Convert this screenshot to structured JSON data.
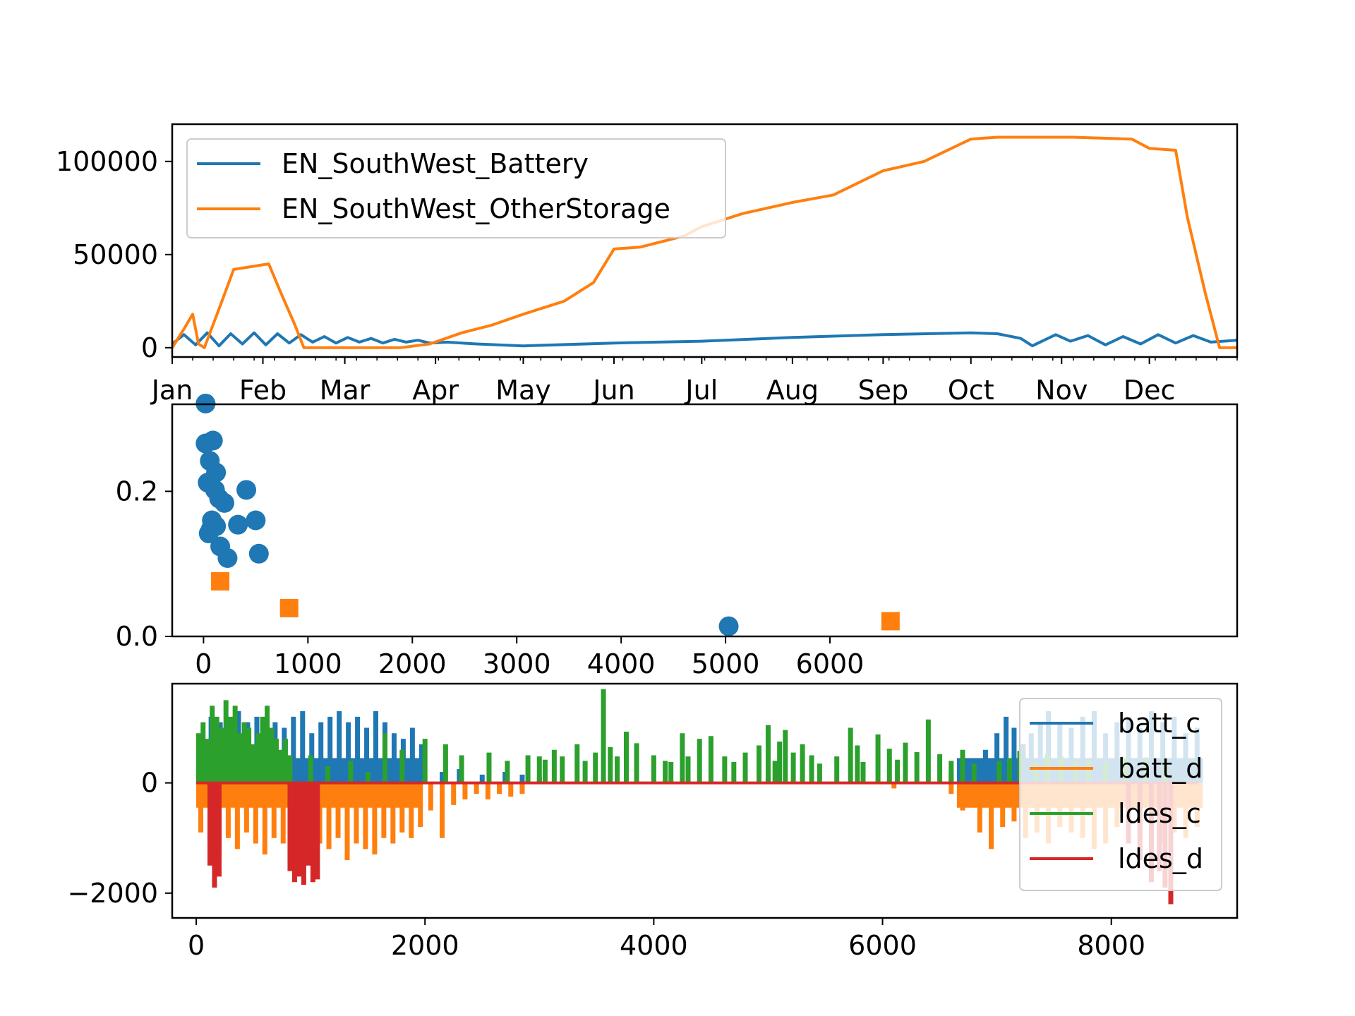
{
  "colors": {
    "c0": "#1f77b4",
    "c1": "#ff7f0e",
    "c2": "#2ca02c",
    "c3": "#d62728",
    "axes": "#000000",
    "background": "#ffffff"
  },
  "chart_data": [
    {
      "id": "top",
      "type": "line",
      "title": "",
      "xlabel": "",
      "ylabel": "",
      "x_scale": "date",
      "x_range": [
        "2023-01-01",
        "2023-12-31"
      ],
      "ylim": [
        -5000,
        120000
      ],
      "grid": false,
      "legend_placement": "upper left",
      "x_tick_labels": [
        "Jan",
        "Feb",
        "Mar",
        "Apr",
        "May",
        "Jun",
        "Jul",
        "Aug",
        "Sep",
        "Oct",
        "Nov",
        "Dec"
      ],
      "x_ticks": [
        "2023-01-01",
        "2023-02-01",
        "2023-03-01",
        "2023-04-01",
        "2023-05-01",
        "2023-06-01",
        "2023-07-01",
        "2023-08-01",
        "2023-09-01",
        "2023-10-01",
        "2023-11-01",
        "2023-12-01"
      ],
      "y_ticks": [
        0,
        50000,
        100000
      ],
      "y_tick_labels": [
        "0",
        "50000",
        "100000"
      ],
      "series": [
        {
          "name": "EN_SouthWest_Battery",
          "color": "#1f77b4",
          "x": [
            "2023-01-01",
            "2023-01-05",
            "2023-01-09",
            "2023-01-13",
            "2023-01-17",
            "2023-01-21",
            "2023-01-25",
            "2023-01-29",
            "2023-02-02",
            "2023-02-06",
            "2023-02-10",
            "2023-02-14",
            "2023-02-18",
            "2023-02-22",
            "2023-02-26",
            "2023-03-02",
            "2023-03-06",
            "2023-03-10",
            "2023-03-14",
            "2023-03-18",
            "2023-03-22",
            "2023-03-26",
            "2023-03-30",
            "2023-04-05",
            "2023-04-15",
            "2023-05-01",
            "2023-06-01",
            "2023-07-01",
            "2023-08-01",
            "2023-09-01",
            "2023-10-01",
            "2023-10-10",
            "2023-10-18",
            "2023-10-22",
            "2023-10-26",
            "2023-10-30",
            "2023-11-04",
            "2023-11-10",
            "2023-11-16",
            "2023-11-22",
            "2023-11-28",
            "2023-12-04",
            "2023-12-10",
            "2023-12-16",
            "2023-12-22",
            "2023-12-31"
          ],
          "y": [
            2000,
            7000,
            1500,
            8000,
            1000,
            7500,
            2000,
            8000,
            1500,
            7500,
            2500,
            7000,
            3000,
            6000,
            2500,
            5500,
            3000,
            5000,
            2500,
            4500,
            3000,
            4000,
            2500,
            3000,
            2000,
            1000,
            2500,
            3500,
            5500,
            7000,
            8000,
            7500,
            5000,
            1000,
            4000,
            7000,
            3500,
            6500,
            1500,
            6000,
            2000,
            7000,
            2500,
            6500,
            3000,
            4000
          ]
        },
        {
          "name": "EN_SouthWest_OtherStorage",
          "color": "#ff7f0e",
          "x": [
            "2023-01-01",
            "2023-01-05",
            "2023-01-08",
            "2023-01-10",
            "2023-01-12",
            "2023-01-18",
            "2023-01-22",
            "2023-02-03",
            "2023-02-07",
            "2023-02-12",
            "2023-02-15",
            "2023-03-01",
            "2023-03-20",
            "2023-03-30",
            "2023-04-10",
            "2023-04-20",
            "2023-05-01",
            "2023-05-15",
            "2023-05-25",
            "2023-06-01",
            "2023-06-10",
            "2023-06-25",
            "2023-07-01",
            "2023-07-15",
            "2023-08-01",
            "2023-08-15",
            "2023-09-01",
            "2023-09-15",
            "2023-10-01",
            "2023-10-10",
            "2023-10-20",
            "2023-11-05",
            "2023-11-25",
            "2023-12-01",
            "2023-12-10",
            "2023-12-14",
            "2023-12-20",
            "2023-12-25",
            "2023-12-31"
          ],
          "y": [
            0,
            10000,
            18000,
            2000,
            0,
            25000,
            42000,
            45000,
            30000,
            12000,
            0,
            0,
            0,
            2000,
            8000,
            12000,
            18000,
            25000,
            35000,
            53000,
            54000,
            60000,
            65000,
            72000,
            78000,
            82000,
            95000,
            100000,
            112000,
            113000,
            113000,
            113000,
            112000,
            107000,
            106000,
            70000,
            30000,
            0,
            0
          ]
        }
      ]
    },
    {
      "id": "middle",
      "type": "scatter",
      "title": "",
      "xlabel": "",
      "ylabel": "",
      "xlim": [
        -300,
        9900
      ],
      "ylim": [
        0,
        0.32
      ],
      "grid": false,
      "x_ticks": [
        0,
        1000,
        2000,
        3000,
        4000,
        5000,
        6000
      ],
      "x_tick_labels": [
        "0",
        "1000",
        "2000",
        "3000",
        "4000",
        "5000",
        "6000"
      ],
      "y_ticks": [
        0.0,
        0.2
      ],
      "y_tick_labels": [
        "0.0",
        "0.2"
      ],
      "series": [
        {
          "marker": "circle",
          "color": "#1f77b4",
          "x": [
            20,
            90,
            20,
            60,
            120,
            40,
            110,
            150,
            200,
            50,
            80,
            120,
            70,
            160,
            230,
            410,
            330,
            500,
            530,
            5030
          ],
          "y": [
            0.321,
            0.27,
            0.266,
            0.242,
            0.226,
            0.212,
            0.202,
            0.19,
            0.184,
            0.142,
            0.16,
            0.152,
            0.148,
            0.124,
            0.108,
            0.202,
            0.154,
            0.16,
            0.114,
            0.014
          ]
        },
        {
          "marker": "square",
          "color": "#ff7f0e",
          "x": [
            160,
            820,
            6580
          ],
          "y": [
            0.076,
            0.039,
            0.021
          ]
        }
      ]
    },
    {
      "id": "bottom",
      "type": "line",
      "title": "",
      "xlabel": "",
      "ylabel": "",
      "xlim": [
        -210,
        9100
      ],
      "ylim": [
        -2450,
        1800
      ],
      "grid": false,
      "legend_placement": "upper right",
      "x_ticks": [
        0,
        2000,
        4000,
        6000,
        8000
      ],
      "x_tick_labels": [
        "0",
        "2000",
        "4000",
        "6000",
        "8000"
      ],
      "y_ticks": [
        -2000,
        0
      ],
      "y_tick_labels": [
        "−2000",
        "0"
      ],
      "series": [
        {
          "name": "batt_c",
          "color": "#1f77b4",
          "style": "spikes",
          "x": [
            50,
            130,
            210,
            290,
            370,
            450,
            530,
            610,
            690,
            770,
            850,
            930,
            1010,
            1090,
            1170,
            1250,
            1330,
            1410,
            1490,
            1570,
            1650,
            1730,
            1810,
            1890,
            1970,
            2150,
            2300,
            2500,
            2700,
            2850,
            3000,
            5000,
            6600,
            6750,
            6900,
            7000,
            7080,
            7150,
            7230,
            7300,
            7380,
            7450,
            7550,
            7650,
            7750,
            7850,
            7950,
            8050,
            8150,
            8250,
            8350,
            8450,
            8550,
            8650,
            8750
          ],
          "y": [
            800,
            1200,
            1100,
            1000,
            1300,
            1100,
            1200,
            900,
            1100,
            1000,
            1200,
            1300,
            900,
            1100,
            1200,
            1300,
            1100,
            1200,
            1000,
            1300,
            1100,
            900,
            800,
            1000,
            700,
            200,
            250,
            150,
            200,
            150,
            100,
            100,
            200,
            300,
            600,
            900,
            1200,
            1000,
            700,
            900,
            1100,
            1300,
            1100,
            1000,
            1200,
            1300,
            900,
            1100,
            1200,
            1000,
            1300,
            1100,
            1200,
            900,
            1000
          ]
        },
        {
          "name": "batt_d",
          "color": "#ff7f0e",
          "style": "spikes",
          "x": [
            40,
            120,
            200,
            280,
            360,
            440,
            520,
            600,
            680,
            760,
            840,
            920,
            1000,
            1080,
            1160,
            1240,
            1320,
            1400,
            1480,
            1560,
            1640,
            1720,
            1800,
            1880,
            1960,
            2050,
            2150,
            2250,
            2350,
            2450,
            2550,
            2650,
            2750,
            2850,
            6100,
            6600,
            6700,
            6850,
            6950,
            7050,
            7150,
            7250,
            7350,
            7450,
            7550,
            7650,
            7750,
            7850,
            7950,
            8050,
            8150,
            8250,
            8350,
            8450,
            8550,
            8650,
            8750
          ],
          "y": [
            -900,
            -1100,
            -1300,
            -1000,
            -1200,
            -900,
            -1100,
            -1300,
            -1000,
            -1100,
            -1200,
            -1000,
            -1300,
            -1100,
            -1200,
            -1000,
            -1400,
            -1100,
            -1200,
            -1300,
            -1000,
            -1100,
            -900,
            -1000,
            -800,
            -500,
            -1000,
            -400,
            -300,
            -200,
            -300,
            -200,
            -250,
            -200,
            -100,
            -200,
            -500,
            -900,
            -1200,
            -800,
            -700,
            -1000,
            -900,
            -1100,
            -800,
            -900,
            -1000,
            -1200,
            -1100,
            -800,
            -700,
            -1000,
            -1300,
            -1100,
            -900,
            -1000,
            -800
          ]
        },
        {
          "name": "ldes_c",
          "color": "#2ca02c",
          "style": "spikes",
          "x": [
            20,
            60,
            100,
            140,
            180,
            220,
            260,
            300,
            340,
            380,
            420,
            460,
            500,
            540,
            580,
            620,
            660,
            700,
            740,
            780,
            820,
            1000,
            1150,
            1350,
            1500,
            1650,
            1800,
            2000,
            2180,
            2320,
            2560,
            2720,
            2900,
            3000,
            3050,
            3130,
            3200,
            3330,
            3400,
            3490,
            3560,
            3620,
            3680,
            3760,
            3850,
            4000,
            4100,
            4150,
            4250,
            4300,
            4400,
            4500,
            4620,
            4700,
            4800,
            4920,
            5000,
            5060,
            5100,
            5150,
            5220,
            5300,
            5380,
            5450,
            5600,
            5720,
            5780,
            5830,
            5960,
            6060,
            6130,
            6200,
            6300,
            6400,
            6500,
            6600,
            6700,
            6800,
            7020,
            7110,
            7200,
            7340,
            7440,
            7560,
            7690,
            7800,
            7950,
            8120,
            8300,
            8470
          ],
          "y": [
            900,
            1100,
            800,
            1400,
            1200,
            1000,
            1500,
            1200,
            1400,
            900,
            1100,
            1000,
            700,
            900,
            1200,
            1400,
            1000,
            800,
            600,
            800,
            500,
            500,
            300,
            400,
            200,
            900,
            600,
            800,
            700,
            500,
            550,
            400,
            500,
            480,
            420,
            600,
            480,
            700,
            400,
            550,
            1700,
            650,
            480,
            930,
            720,
            500,
            400,
            380,
            900,
            480,
            800,
            850,
            480,
            380,
            550,
            680,
            1050,
            400,
            750,
            960,
            550,
            700,
            500,
            350,
            480,
            1000,
            680,
            380,
            880,
            620,
            420,
            730,
            560,
            1150,
            520,
            400,
            600,
            350,
            400,
            450,
            580,
            380,
            520,
            480,
            400,
            420,
            380,
            450,
            460,
            400
          ]
        },
        {
          "name": "ldes_d",
          "color": "#d62728",
          "style": "spikes",
          "x": [
            120,
            160,
            200,
            820,
            860,
            900,
            940,
            980,
            1020,
            1060,
            8150,
            8250,
            8350,
            8420,
            8470,
            8520
          ],
          "y": [
            -1500,
            -1900,
            -1700,
            -1600,
            -1800,
            -1700,
            -1850,
            -1500,
            -1800,
            -1750,
            -1100,
            -1400,
            -1800,
            -1600,
            -1900,
            -2200
          ]
        }
      ]
    }
  ]
}
